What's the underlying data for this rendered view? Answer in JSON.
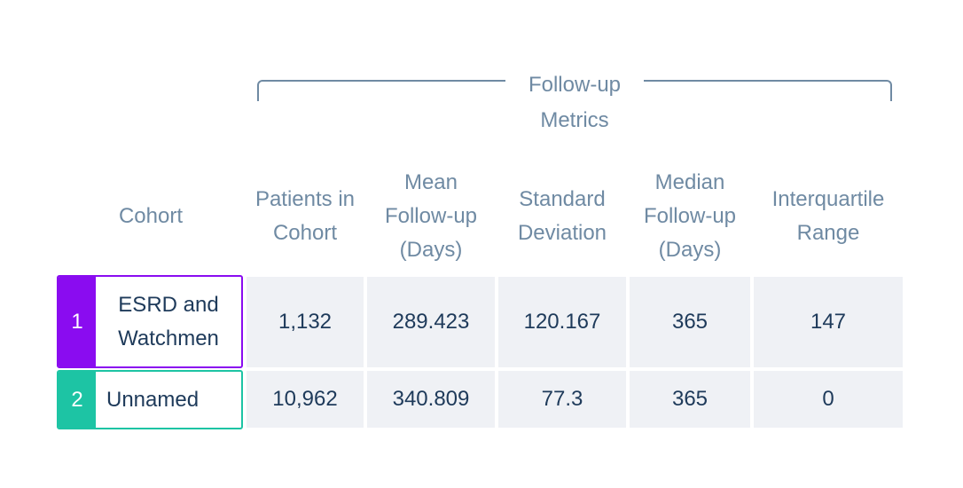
{
  "group_header": {
    "label": "Follow-up Metrics"
  },
  "columns": {
    "cohort": "Cohort",
    "patients": "Patients in Cohort",
    "mean": "Mean Follow-up (Days)",
    "sd": "Standard Deviation",
    "median": "Median Follow-up (Days)",
    "iqr": "Interquartile Range"
  },
  "rows": [
    {
      "index": "1",
      "name": "ESRD and Watchmen",
      "color": "#8a0cf0",
      "patients": "1,132",
      "mean": "289.423",
      "sd": "120.167",
      "median": "365",
      "iqr": "147"
    },
    {
      "index": "2",
      "name": "Unnamed",
      "color": "#1dc4a4",
      "patients": "10,962",
      "mean": "340.809",
      "sd": "77.3",
      "median": "365",
      "iqr": "0"
    }
  ]
}
